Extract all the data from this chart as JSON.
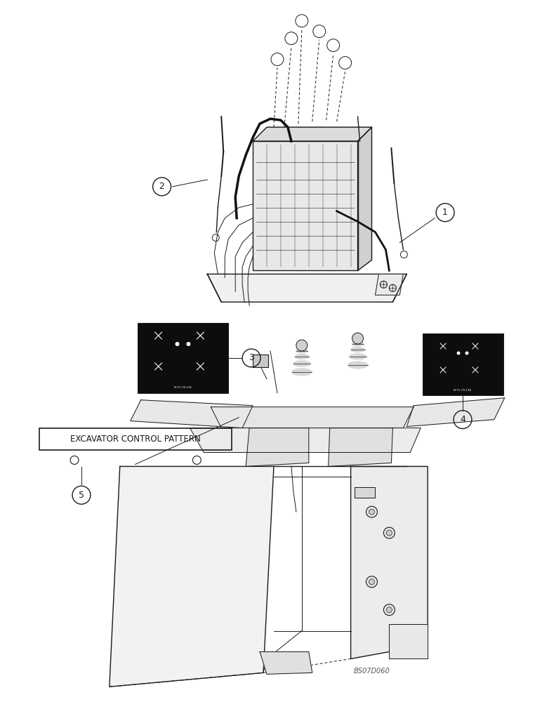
{
  "bg_color": "#ffffff",
  "fig_width": 7.72,
  "fig_height": 10.0,
  "dpi": 100,
  "watermark": "BS07D060",
  "excavator_label": "EXCAVATOR CONTROL PATTERN",
  "line_color": "#1a1a1a",
  "black_panel_color": "#111111"
}
